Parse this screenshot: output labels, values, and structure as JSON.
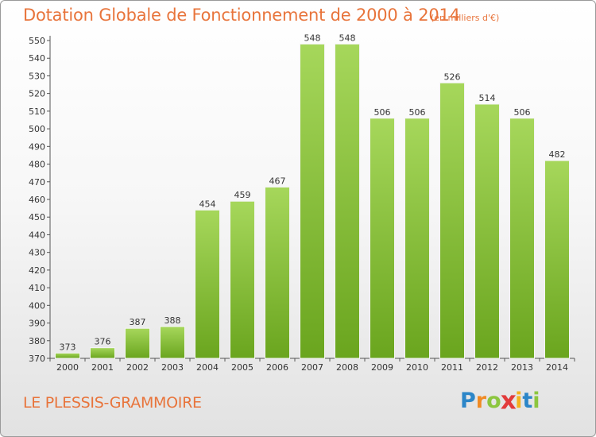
{
  "chart_data": {
    "type": "bar",
    "title": "Dotation Globale de Fonctionnement de 2000 à 2014",
    "unit_label": "(en milliers d'€)",
    "categories": [
      "2000",
      "2001",
      "2002",
      "2003",
      "2004",
      "2005",
      "2006",
      "2007",
      "2008",
      "2009",
      "2010",
      "2011",
      "2012",
      "2013",
      "2014"
    ],
    "values": [
      373,
      376,
      387,
      388,
      454,
      459,
      467,
      548,
      548,
      506,
      506,
      526,
      514,
      506,
      482
    ],
    "ylim": [
      370,
      550
    ],
    "ytick_step": 10,
    "grid": false,
    "bar_color_top": "#a6d75b",
    "bar_color_bottom": "#6aa51e"
  },
  "footer": {
    "commune": "LE PLESSIS-GRAMMOIRE",
    "logo_letters": [
      {
        "ch": "P",
        "color": "#2c86c8"
      },
      {
        "ch": "r",
        "color": "#f08a24"
      },
      {
        "ch": "o",
        "color": "#8cc63f"
      },
      {
        "ch": "x",
        "color": "#e23b3b"
      },
      {
        "ch": "i",
        "color": "#f5b21c"
      },
      {
        "ch": "t",
        "color": "#2c86c8"
      },
      {
        "ch": "i",
        "color": "#8cc63f"
      }
    ]
  }
}
